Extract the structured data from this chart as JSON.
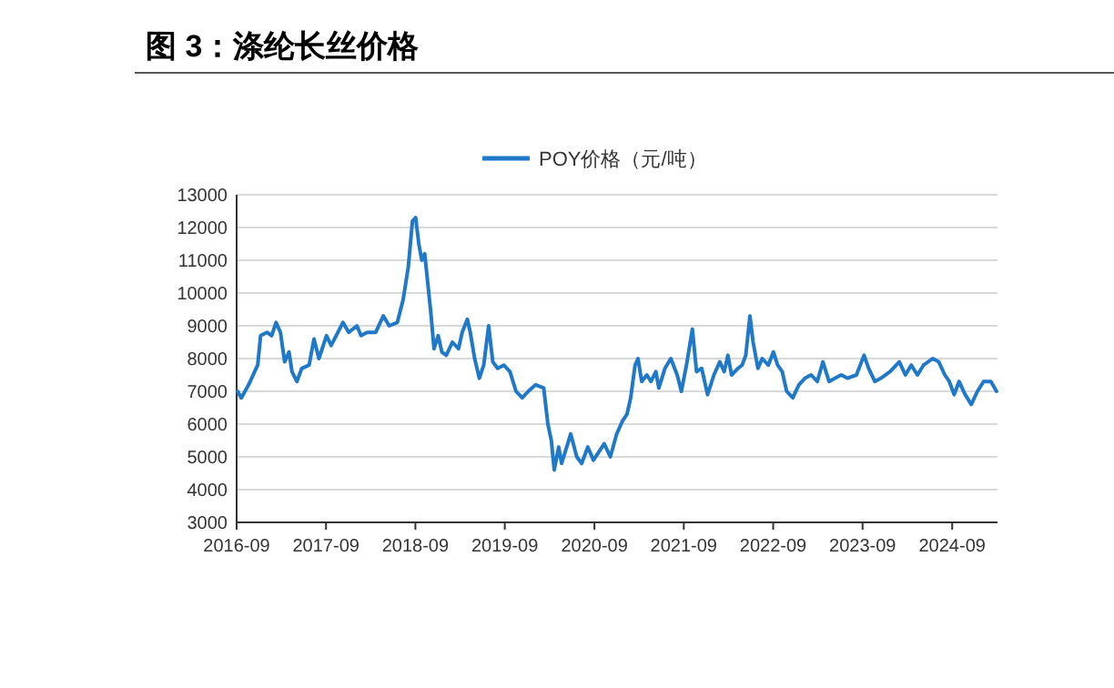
{
  "chart_data": {
    "type": "line",
    "title": "图 3：涤纶长丝价格",
    "legend": "top",
    "grid": "y",
    "xlim": [
      "2016-09-01",
      "2025-03-05"
    ],
    "xticks": [
      {
        "value": "2016-09",
        "label": "2016-09"
      },
      {
        "value": "2017-09",
        "label": "2017-09"
      },
      {
        "value": "2018-09",
        "label": "2018-09"
      },
      {
        "value": "2019-09",
        "label": "2019-09"
      },
      {
        "value": "2020-09",
        "label": "2020-09"
      },
      {
        "value": "2021-09",
        "label": "2021-09"
      },
      {
        "value": "2022-09",
        "label": "2022-09"
      },
      {
        "value": "2023-09",
        "label": "2023-09"
      },
      {
        "value": "2024-09",
        "label": "2024-09"
      }
    ],
    "ylim": [
      3000,
      13000
    ],
    "yticks": [
      3000,
      4000,
      5000,
      6000,
      7000,
      8000,
      9000,
      10000,
      11000,
      12000,
      13000
    ],
    "series": [
      {
        "name": "POY价格（元/吨）",
        "color": "#1f78c8",
        "x": [
          "2016-09-05",
          "2016-09-20",
          "2016-10-20",
          "2016-11-26",
          "2016-12-08",
          "2017-01-03",
          "2017-01-22",
          "2017-02-09",
          "2017-02-27",
          "2017-03-16",
          "2017-04-03",
          "2017-04-15",
          "2017-05-05",
          "2017-05-25",
          "2017-06-24",
          "2017-07-14",
          "2017-08-03",
          "2017-09-03",
          "2017-09-22",
          "2017-11-09",
          "2017-12-03",
          "2018-01-05",
          "2018-01-22",
          "2018-02-16",
          "2018-03-23",
          "2018-04-23",
          "2018-05-17",
          "2018-06-19",
          "2018-07-13",
          "2018-08-03",
          "2018-08-20",
          "2018-09-02",
          "2018-09-15",
          "2018-09-27",
          "2018-10-09",
          "2018-11-03",
          "2018-11-16",
          "2018-12-03",
          "2018-12-18",
          "2019-01-05",
          "2019-01-30",
          "2019-02-24",
          "2019-03-11",
          "2019-04-01",
          "2019-04-13",
          "2019-05-01",
          "2019-05-20",
          "2019-06-07",
          "2019-06-27",
          "2019-07-14",
          "2019-08-03",
          "2019-08-28",
          "2019-09-22",
          "2019-10-17",
          "2019-11-11",
          "2019-12-06",
          "2020-01-05",
          "2020-02-07",
          "2020-02-24",
          "2020-03-09",
          "2020-03-21",
          "2020-04-08",
          "2020-04-20",
          "2020-05-15",
          "2020-05-27",
          "2020-06-21",
          "2020-07-11",
          "2020-08-05",
          "2020-08-28",
          "2020-10-11",
          "2020-11-05",
          "2020-12-01",
          "2020-12-25",
          "2021-01-12",
          "2021-01-27",
          "2021-02-14",
          "2021-02-26",
          "2021-03-13",
          "2021-04-03",
          "2021-04-20",
          "2021-05-10",
          "2021-05-22",
          "2021-06-16",
          "2021-07-10",
          "2021-08-05",
          "2021-08-22",
          "2021-09-12",
          "2021-10-06",
          "2021-10-23",
          "2021-11-13",
          "2021-12-07",
          "2022-01-02",
          "2022-01-26",
          "2022-02-13",
          "2022-02-28",
          "2022-03-15",
          "2022-04-10",
          "2022-04-27",
          "2022-05-12",
          "2022-05-29",
          "2022-06-11",
          "2022-07-01",
          "2022-07-18",
          "2022-08-12",
          "2022-09-02",
          "2022-09-19",
          "2022-10-08",
          "2022-10-26",
          "2022-11-20",
          "2022-12-15",
          "2023-01-09",
          "2023-02-03",
          "2023-02-28",
          "2023-03-23",
          "2023-04-17",
          "2023-05-12",
          "2023-06-06",
          "2023-07-01",
          "2023-08-07",
          "2023-09-07",
          "2023-09-26",
          "2023-10-21",
          "2023-11-15",
          "2023-12-22",
          "2024-01-29",
          "2024-02-23",
          "2024-03-18",
          "2024-04-12",
          "2024-05-07",
          "2024-06-13",
          "2024-07-08",
          "2024-08-02",
          "2024-08-20",
          "2024-09-09",
          "2024-09-29",
          "2024-10-24",
          "2024-11-18",
          "2024-12-13",
          "2025-01-07",
          "2025-02-06",
          "2025-03-01"
        ],
        "values": [
          7000,
          6800,
          7200,
          7800,
          8700,
          8800,
          8700,
          9100,
          8800,
          7900,
          8200,
          7600,
          7300,
          7700,
          7800,
          8600,
          8000,
          8700,
          8400,
          9100,
          8800,
          9000,
          8700,
          8800,
          8800,
          9300,
          9000,
          9100,
          9800,
          10800,
          12200,
          12300,
          11500,
          11000,
          11200,
          9400,
          8300,
          8700,
          8200,
          8100,
          8500,
          8300,
          8800,
          9200,
          8800,
          8000,
          7400,
          7800,
          9000,
          7900,
          7700,
          7800,
          7600,
          7000,
          6800,
          7000,
          7200,
          7100,
          6000,
          5500,
          4600,
          5300,
          4800,
          5400,
          5700,
          5000,
          4800,
          5300,
          4900,
          5400,
          5000,
          5700,
          6100,
          6300,
          6800,
          7800,
          8000,
          7300,
          7500,
          7300,
          7600,
          7100,
          7700,
          8000,
          7500,
          7000,
          7800,
          8900,
          7600,
          7700,
          6900,
          7500,
          7900,
          7600,
          8100,
          7500,
          7700,
          7800,
          8100,
          9300,
          8500,
          7700,
          8000,
          7800,
          8200,
          7800,
          7600,
          7000,
          6800,
          7200,
          7400,
          7500,
          7300,
          7900,
          7300,
          7400,
          7500,
          7400,
          7500,
          8100,
          7700,
          7300,
          7400,
          7600,
          7900,
          7500,
          7800,
          7500,
          7800,
          8000,
          7900,
          7500,
          7300,
          6900,
          7300,
          6900,
          6600,
          7000,
          7300,
          7300,
          7000
        ]
      }
    ]
  }
}
